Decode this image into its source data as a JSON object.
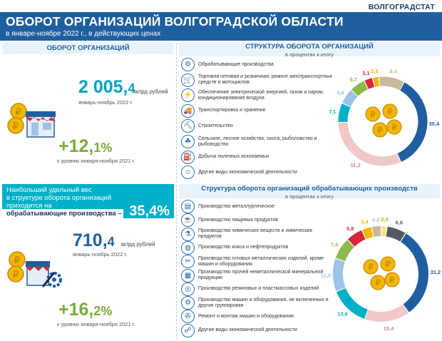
{
  "brand": "ВОЛГОГРАДСТАТ",
  "header": {
    "title": "ОБОРОТ ОРГАНИЗАЦИЙ ВОЛГОГРАДСКОЙ ОБЛАСТИ",
    "subtitle": "в январе-ноябре 2022 г., в действующих ценах"
  },
  "left_top": {
    "heading": "ОБОРОТ  ОРГАНИЗАЦИЙ",
    "value_int": "2 005,",
    "value_dec": "4",
    "unit": "млрд рублей",
    "period": "январь-ноябрь 2022 г.",
    "growth_int": "+12,",
    "growth_dec": "1",
    "growth_pct": "%",
    "growth_note": "к уровню января-ноября 2021 г."
  },
  "highlight": {
    "line1": "Наибольший удельный вес",
    "line2": "в структуре оборота организаций",
    "line3": "приходится на",
    "line4": "обрабатывающие производства –",
    "value": "35,4%"
  },
  "left_bottom": {
    "value_int": "710,",
    "value_dec": "4",
    "unit": "млрд рублей",
    "period": "январь-ноябрь 2022 г.",
    "growth_int": "+16,",
    "growth_dec": "2",
    "growth_pct": "%",
    "growth_note": "к уровню января-ноября 2021 г."
  },
  "structure_top": {
    "heading": "СТРУКТУРА ОБОРОТА ОРГАНИЗАЦИЙ",
    "sub": "в процентах к итогу",
    "items": [
      {
        "label": "Обрабатывающие производства",
        "icon": "factory-icon"
      },
      {
        "label": "Торговля оптовая и розничная; ремонт автотранспортных средств и мотоциклов",
        "icon": "cart-icon"
      },
      {
        "label": "Обеспечение электрической энергией, газом и паром; кондиционирование воздуха",
        "icon": "power-icon"
      },
      {
        "label": "Транспортировка и хранение",
        "icon": "truck-icon"
      },
      {
        "label": "Строительство",
        "icon": "crane-icon"
      },
      {
        "label": "Сельское, лесное хозяйство, охота, рыболовство и рыбоводство",
        "icon": "tractor-icon"
      },
      {
        "label": "Добыча полезных ископаемых",
        "icon": "oil-icon"
      },
      {
        "label": "Другие виды  экономической деятельности",
        "icon": "people-icon"
      }
    ]
  },
  "structure_bottom": {
    "heading": "Структура оборота  организаций  обрабатывающих производств",
    "sub": "в процентах к итогу",
    "items": [
      {
        "label": "Производство металлургическое",
        "icon": "metal-icon"
      },
      {
        "label": "Производство пищевых продуктов",
        "icon": "food-icon"
      },
      {
        "label": "Производство химических веществ и химических продуктов",
        "icon": "flask-icon"
      },
      {
        "label": "Производство кокса и нефтепродуктов",
        "icon": "barrel-icon"
      },
      {
        "label": "Производство готовых металлических изделий, кроме машин и оборудования",
        "icon": "tools-icon"
      },
      {
        "label": "Производство  прочей неметаллической минеральной продукции",
        "icon": "bricks-icon"
      },
      {
        "label": "Производство резиновых и пластмассовых изделий",
        "icon": "tire-icon"
      },
      {
        "label": "Производство машин и оборудования, не включенных в другие группировки",
        "icon": "gear-icon"
      },
      {
        "label": "Ремонт и монтаж машин и оборудования",
        "icon": "wrench-icon"
      },
      {
        "label": "Другие виды экономической деятельности",
        "icon": "network-icon"
      }
    ]
  },
  "chart_data": [
    {
      "type": "pie",
      "values": [
        35.4,
        31.2,
        7.1,
        5.8,
        5.7,
        3.1,
        2.3,
        9.4
      ],
      "labels": [
        "35,4",
        "31,2",
        "7,1",
        "5,8",
        "5,7",
        "3,1",
        "2,3",
        "9,4"
      ],
      "colors": [
        "#1f5f9f",
        "#f0c8c8",
        "#00b0c8",
        "#9dc3e6",
        "#8db84a",
        "#d9263b",
        "#f2b705",
        "#c9b99a"
      ]
    },
    {
      "type": "pie",
      "values": [
        31.2,
        15.4,
        13.6,
        11.3,
        7.4,
        5.8,
        3.4,
        3.2,
        2.0,
        6.6
      ],
      "labels": [
        "31,2",
        "15,4",
        "13,6",
        "11,3",
        "7,4",
        "5,8",
        "3,4",
        "3,2",
        "2,0",
        "6,6"
      ],
      "colors": [
        "#1f5f9f",
        "#f0c8c8",
        "#00b0c8",
        "#9dc3e6",
        "#8db84a",
        "#d9263b",
        "#f2b705",
        "#c9b99a",
        "#ffe28a",
        "#555a60"
      ]
    }
  ]
}
